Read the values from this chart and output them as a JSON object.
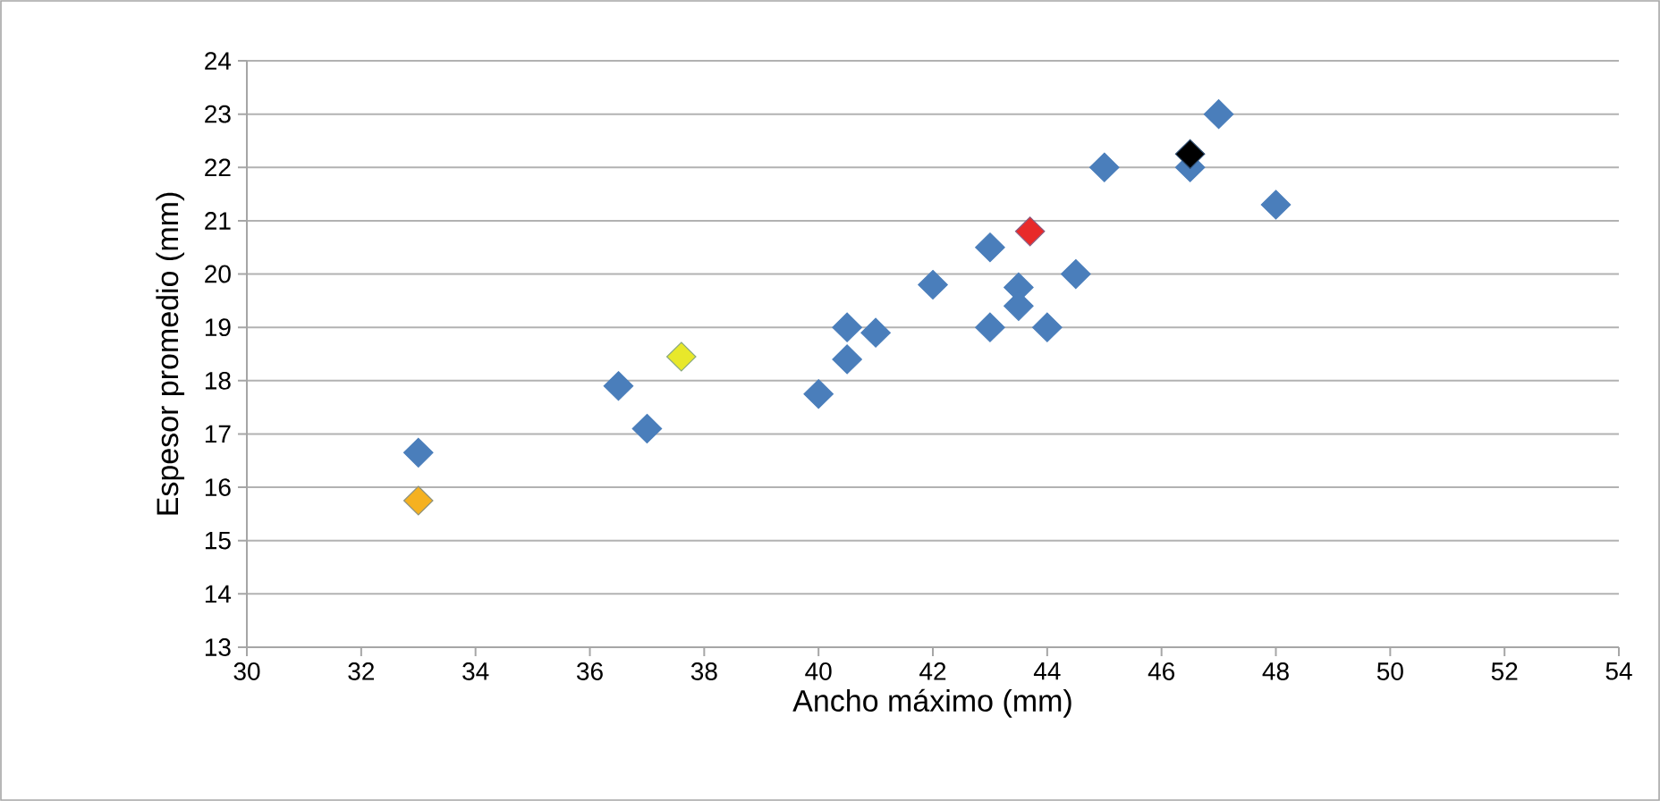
{
  "chart_data": {
    "type": "scatter",
    "xlabel": "Ancho máximo (mm)",
    "ylabel": "Espesor promedio (mm)",
    "xlim": [
      30,
      54
    ],
    "xticks": [
      30,
      32,
      34,
      36,
      38,
      40,
      42,
      44,
      46,
      48,
      50,
      52,
      54
    ],
    "ylim": [
      13,
      24
    ],
    "yticks": [
      13,
      14,
      15,
      16,
      17,
      18,
      19,
      20,
      21,
      22,
      23,
      24
    ],
    "grid": "y",
    "marker": "diamond",
    "series": [
      {
        "color": "#4a7ebb",
        "x": [
          33,
          36.5,
          37,
          40,
          40.5,
          40.5,
          41,
          42,
          43,
          43,
          43.5,
          43.5,
          44,
          44.5,
          45,
          46.5,
          47,
          48
        ],
        "values": [
          16.65,
          17.9,
          17.1,
          17.75,
          19,
          18.4,
          18.9,
          19.8,
          20.5,
          19,
          19.75,
          19.4,
          19,
          20,
          22,
          22,
          23,
          21.3
        ]
      },
      {
        "color": "#f5b120",
        "x": [
          33
        ],
        "values": [
          15.75
        ]
      },
      {
        "color": "#e8e82a",
        "x": [
          37.6
        ],
        "values": [
          18.45
        ]
      },
      {
        "color": "#e82a2a",
        "x": [
          43.7
        ],
        "values": [
          20.8
        ]
      },
      {
        "color": "#000000",
        "x": [
          46.5
        ],
        "values": [
          22.25
        ]
      }
    ]
  }
}
